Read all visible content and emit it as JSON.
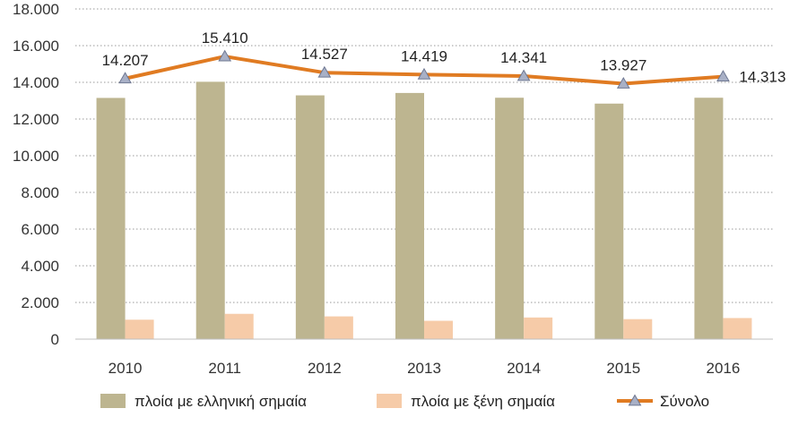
{
  "chart_data": {
    "type": "bar",
    "categories": [
      "2010",
      "2011",
      "2012",
      "2013",
      "2014",
      "2015",
      "2016"
    ],
    "series": [
      {
        "name": "πλοία με ελληνική σημαία",
        "kind": "bar",
        "color": "#BDB590",
        "values": [
          13150,
          14030,
          13290,
          13420,
          13160,
          12840,
          13160
        ]
      },
      {
        "name": "πλοία με ξένη σημαία",
        "kind": "bar",
        "color": "#F6CBA8",
        "values": [
          1060,
          1380,
          1240,
          1000,
          1180,
          1090,
          1150
        ]
      },
      {
        "name": "Σύνολο",
        "kind": "line",
        "color": "#E07B22",
        "marker_color": "#A8B0C6",
        "values": [
          14207,
          15410,
          14527,
          14419,
          14341,
          13927,
          14313
        ],
        "labels": [
          "14.207",
          "15.410",
          "14.527",
          "14.419",
          "14.341",
          "13.927",
          "14.313"
        ]
      }
    ],
    "ylim": [
      0,
      18000
    ],
    "yticks": [
      0,
      2000,
      4000,
      6000,
      8000,
      10000,
      12000,
      14000,
      16000,
      18000
    ],
    "ytick_labels": [
      "0",
      "2.000",
      "4.000",
      "6.000",
      "8.000",
      "10.000",
      "12.000",
      "14.000",
      "16.000",
      "18.000"
    ],
    "grid": true,
    "legend_position": "bottom",
    "title": "",
    "xlabel": "",
    "ylabel": ""
  }
}
